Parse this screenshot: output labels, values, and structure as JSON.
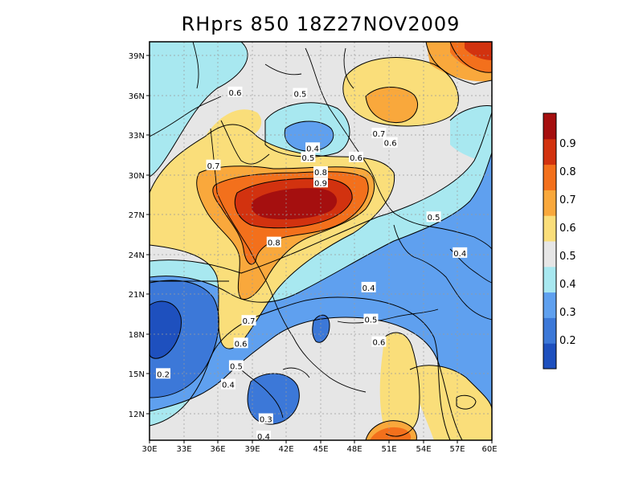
{
  "title": "RHprs 850 18Z27NOV2009",
  "map": {
    "y_ticks": [
      "39N",
      "36N",
      "33N",
      "30N",
      "27N",
      "24N",
      "21N",
      "18N",
      "15N",
      "12N"
    ],
    "x_ticks": [
      "30E",
      "33E",
      "36E",
      "39E",
      "42E",
      "45E",
      "48E",
      "51E",
      "54E",
      "57E",
      "60E"
    ],
    "lon_range": [
      30,
      60
    ],
    "lat_range": [
      10,
      40
    ],
    "gridlines": true,
    "contour_labels": [
      {
        "text": "0.6",
        "lon": 37.5,
        "lat": 36.2
      },
      {
        "text": "0.5",
        "lon": 43.2,
        "lat": 36.1
      },
      {
        "text": "0.7",
        "lon": 50.1,
        "lat": 33.1
      },
      {
        "text": "0.6",
        "lon": 51.1,
        "lat": 32.4
      },
      {
        "text": "0.4",
        "lon": 44.3,
        "lat": 32.0
      },
      {
        "text": "0.5",
        "lon": 43.9,
        "lat": 31.3
      },
      {
        "text": "0.6",
        "lon": 48.1,
        "lat": 31.3
      },
      {
        "text": "0.7",
        "lon": 35.6,
        "lat": 30.7
      },
      {
        "text": "0.8",
        "lon": 45.0,
        "lat": 30.2
      },
      {
        "text": "0.9",
        "lon": 45.0,
        "lat": 29.4
      },
      {
        "text": "0.5",
        "lon": 54.9,
        "lat": 26.8
      },
      {
        "text": "0.8",
        "lon": 40.9,
        "lat": 24.9
      },
      {
        "text": "0.4",
        "lon": 57.2,
        "lat": 24.1
      },
      {
        "text": "0.4",
        "lon": 49.2,
        "lat": 21.5
      },
      {
        "text": "0.5",
        "lon": 49.4,
        "lat": 19.1
      },
      {
        "text": "0.7",
        "lon": 38.7,
        "lat": 19.0
      },
      {
        "text": "0.6",
        "lon": 38.0,
        "lat": 17.3
      },
      {
        "text": "0.6",
        "lon": 50.1,
        "lat": 17.4
      },
      {
        "text": "0.5",
        "lon": 37.6,
        "lat": 15.6
      },
      {
        "text": "0.2",
        "lon": 31.2,
        "lat": 15.0
      },
      {
        "text": "0.4",
        "lon": 36.9,
        "lat": 14.2
      },
      {
        "text": "0.3",
        "lon": 40.2,
        "lat": 11.6
      },
      {
        "text": "0.4",
        "lon": 40.0,
        "lat": 10.3
      }
    ]
  },
  "colorbar": {
    "labels": [
      "0.9",
      "0.8",
      "0.7",
      "0.6",
      "0.5",
      "0.4",
      "0.3",
      "0.2"
    ],
    "colors": [
      "#1e50be",
      "#3c78d8",
      "#5fa0ef",
      "#a8e8f0",
      "#e6e6e6",
      "#fade7a",
      "#f9a83c",
      "#f3701c",
      "#d2320f",
      "#a50f0f"
    ]
  },
  "colors": {
    "c0_2": "#1e50be",
    "c0_3": "#3c78d8",
    "c0_4": "#5fa0ef",
    "c0_5": "#a8e8f0",
    "c0_6": "#e6e6e6",
    "c0_7": "#fade7a",
    "c0_8": "#f9a83c",
    "c0_9": "#f3701c",
    "c1_0": "#d2320f",
    "c1_1": "#a50f0f"
  }
}
